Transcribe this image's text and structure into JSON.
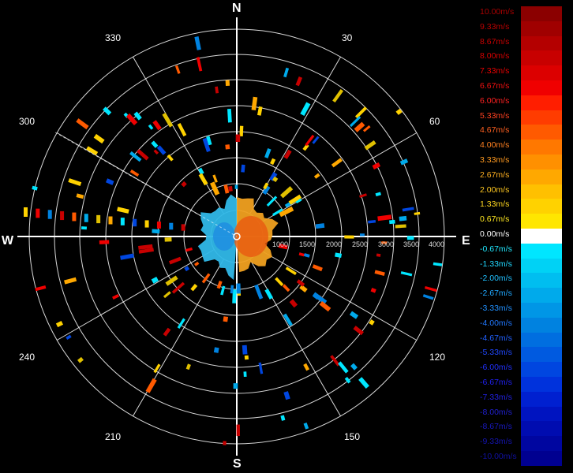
{
  "compass": {
    "north": "N",
    "south": "S",
    "east": "E",
    "west": "W"
  },
  "azimuth_labels": [
    "30",
    "60",
    "120",
    "150",
    "210",
    "240",
    "300",
    "330"
  ],
  "range_labels": [
    "1000",
    "1500",
    "2000",
    "2500",
    "3000",
    "3500",
    "4000"
  ],
  "scale": [
    {
      "label": "10.00m/s",
      "text_color": "#aa0000",
      "swatch": "#8b0000"
    },
    {
      "label": "9.33m/s",
      "text_color": "#b80000",
      "swatch": "#a00000"
    },
    {
      "label": "8.67m/s",
      "text_color": "#c80000",
      "swatch": "#b40000"
    },
    {
      "label": "8.00m/s",
      "text_color": "#d80000",
      "swatch": "#c80000"
    },
    {
      "label": "7.33m/s",
      "text_color": "#e80000",
      "swatch": "#dc0000"
    },
    {
      "label": "6.67m/s",
      "text_color": "#f01010",
      "swatch": "#f00000"
    },
    {
      "label": "6.00m/s",
      "text_color": "#ff2020",
      "swatch": "#ff1e00"
    },
    {
      "label": "5.33m/s",
      "text_color": "#ff4020",
      "swatch": "#ff3c00"
    },
    {
      "label": "4.67m/s",
      "text_color": "#ff6020",
      "swatch": "#ff5a00"
    },
    {
      "label": "4.00m/s",
      "text_color": "#ff8020",
      "swatch": "#ff7800"
    },
    {
      "label": "3.33m/s",
      "text_color": "#ff9a20",
      "swatch": "#ff9000"
    },
    {
      "label": "2.67m/s",
      "text_color": "#ffb020",
      "swatch": "#ffa800"
    },
    {
      "label": "2.00m/s",
      "text_color": "#ffc820",
      "swatch": "#ffc000"
    },
    {
      "label": "1.33m/s",
      "text_color": "#ffd820",
      "swatch": "#ffd200"
    },
    {
      "label": "0.67m/s",
      "text_color": "#ffe820",
      "swatch": "#ffe600"
    },
    {
      "label": "0.00m/s",
      "text_color": "#ffffff",
      "swatch": "#ffffff"
    },
    {
      "label": "-0.67m/s",
      "text_color": "#20e8ff",
      "swatch": "#00e6ff"
    },
    {
      "label": "-1.33m/s",
      "text_color": "#20d8ff",
      "swatch": "#00d2f5"
    },
    {
      "label": "-2.00m/s",
      "text_color": "#20c0ff",
      "swatch": "#00bef0"
    },
    {
      "label": "-2.67m/s",
      "text_color": "#20a8ff",
      "swatch": "#00aaeb"
    },
    {
      "label": "-3.33m/s",
      "text_color": "#2090ff",
      "swatch": "#0096e6"
    },
    {
      "label": "-4.00m/s",
      "text_color": "#2078ff",
      "swatch": "#0082e0"
    },
    {
      "label": "-4.67m/s",
      "text_color": "#2060ff",
      "swatch": "#006ee0"
    },
    {
      "label": "-5.33m/s",
      "text_color": "#2048ff",
      "swatch": "#005ae0"
    },
    {
      "label": "-6.00m/s",
      "text_color": "#2030ff",
      "swatch": "#0046e0"
    },
    {
      "label": "-6.67m/s",
      "text_color": "#2020f0",
      "swatch": "#0032dc"
    },
    {
      "label": "-7.33m/s",
      "text_color": "#2020e0",
      "swatch": "#0020d0"
    },
    {
      "label": "-8.00m/s",
      "text_color": "#2020d0",
      "swatch": "#0014c0"
    },
    {
      "label": "-8.67m/s",
      "text_color": "#1818c0",
      "swatch": "#000cb0"
    },
    {
      "label": "-9.33m/s",
      "text_color": "#1414b0",
      "swatch": "#0006a0"
    },
    {
      "label": "-10.00m/s",
      "text_color": "#1010a0",
      "swatch": "#000090"
    }
  ],
  "colors": {
    "background": "#000000",
    "grid": "#ffffff",
    "axis": "#ffffff"
  }
}
